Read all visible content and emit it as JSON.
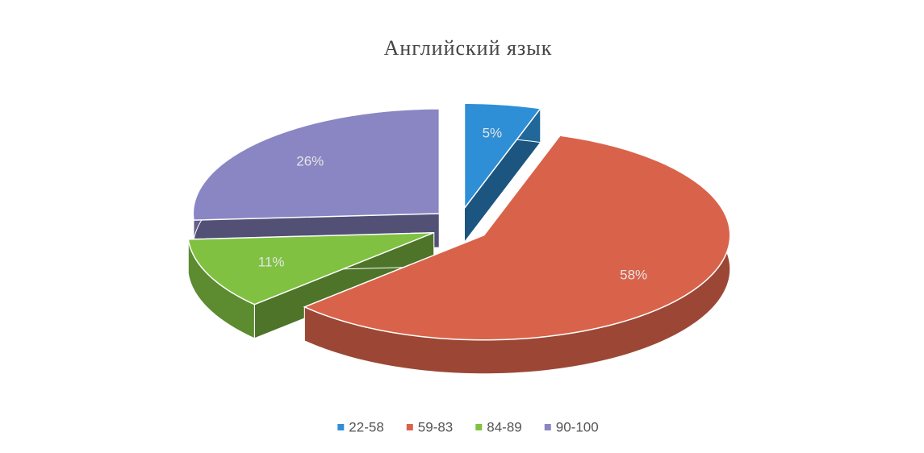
{
  "chart_data": {
    "type": "pie",
    "title": "Английский язык",
    "categories": [
      "22-58",
      "59-83",
      "84-89",
      "90-100"
    ],
    "values": [
      5,
      58,
      11,
      26
    ],
    "value_labels": [
      "5%",
      "58%",
      "11%",
      "26%"
    ],
    "colors": [
      "#2e8fd6",
      "#d9634a",
      "#80c142",
      "#8a86c4"
    ],
    "legend": "bottom"
  }
}
